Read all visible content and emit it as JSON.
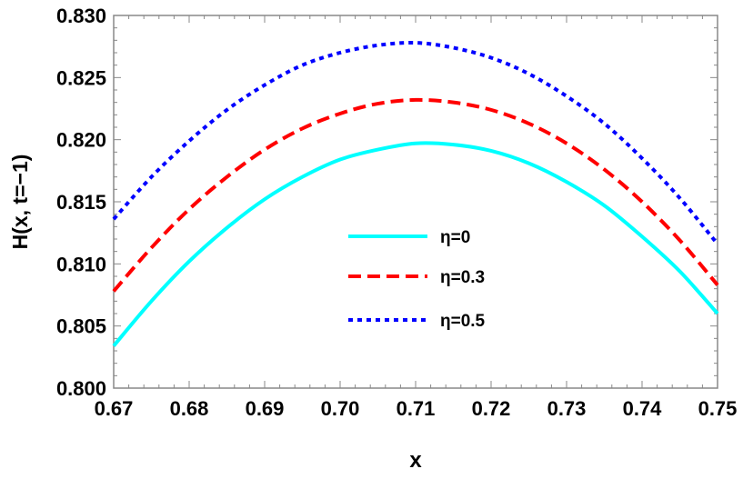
{
  "chart_data": {
    "type": "line",
    "xlabel": "x",
    "ylabel": "H(x, t=−1)",
    "xlim": [
      0.67,
      0.75
    ],
    "ylim": [
      0.8,
      0.83
    ],
    "xticks": [
      "0.67",
      "0.68",
      "0.69",
      "0.70",
      "0.71",
      "0.72",
      "0.73",
      "0.74",
      "0.75"
    ],
    "yticks": [
      "0.800",
      "0.805",
      "0.810",
      "0.815",
      "0.820",
      "0.825",
      "0.830"
    ],
    "grid": false,
    "legend_position": "center",
    "x": [
      0.67,
      0.675,
      0.68,
      0.685,
      0.69,
      0.695,
      0.7,
      0.705,
      0.71,
      0.715,
      0.72,
      0.725,
      0.73,
      0.735,
      0.74,
      0.745,
      0.75
    ],
    "series": [
      {
        "name": "η=0",
        "color": "#00ffff",
        "style": "solid",
        "values": [
          0.8034,
          0.807,
          0.8102,
          0.8129,
          0.8152,
          0.817,
          0.8184,
          0.8192,
          0.8197,
          0.8196,
          0.8191,
          0.8181,
          0.8166,
          0.8147,
          0.8122,
          0.8094,
          0.806
        ]
      },
      {
        "name": "η=0.3",
        "color": "#ff0000",
        "style": "dashed",
        "values": [
          0.8078,
          0.8113,
          0.8144,
          0.817,
          0.8192,
          0.8209,
          0.8221,
          0.8229,
          0.8232,
          0.823,
          0.8224,
          0.8213,
          0.8197,
          0.8176,
          0.815,
          0.8119,
          0.8083
        ]
      },
      {
        "name": "η=0.5",
        "color": "#0000ff",
        "style": "dotted",
        "values": [
          0.8136,
          0.817,
          0.8199,
          0.8224,
          0.8244,
          0.826,
          0.827,
          0.8276,
          0.8278,
          0.8274,
          0.8266,
          0.8253,
          0.8235,
          0.8213,
          0.8185,
          0.8153,
          0.8116
        ]
      }
    ]
  }
}
